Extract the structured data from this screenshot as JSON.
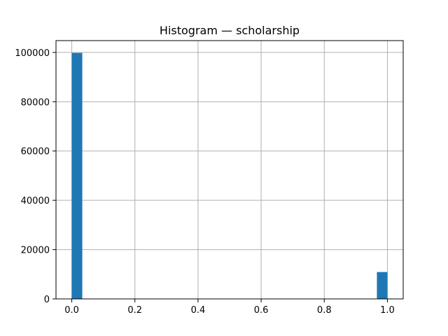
{
  "chart_data": {
    "type": "bar",
    "title": "Histogram — scholarship",
    "xlabel": "",
    "ylabel": "",
    "xlim": [
      -0.05,
      1.05
    ],
    "ylim": [
      0,
      104800
    ],
    "grid": true,
    "x_ticks": [
      0.0,
      0.2,
      0.4,
      0.6,
      0.8,
      1.0
    ],
    "x_tick_labels": [
      "0.0",
      "0.2",
      "0.4",
      "0.6",
      "0.8",
      "1.0"
    ],
    "y_ticks": [
      0,
      20000,
      40000,
      60000,
      80000,
      100000
    ],
    "y_tick_labels": [
      "0",
      "20000",
      "40000",
      "60000",
      "80000",
      "100000"
    ],
    "bin_width": 0.0333,
    "bins": [
      {
        "x_start": 0.0,
        "x_end": 0.0333,
        "count": 99800
      },
      {
        "x_start": 0.9667,
        "x_end": 1.0,
        "count": 10900
      }
    ],
    "bar_color": "#1f77b4",
    "grid_color": "#b0b0b0"
  }
}
